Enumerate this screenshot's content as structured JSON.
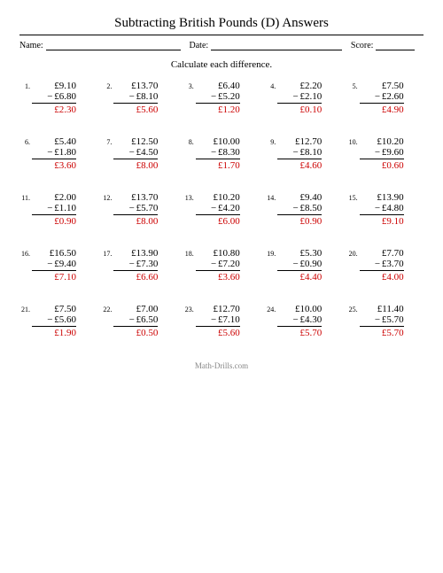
{
  "title": "Subtracting British Pounds (D) Answers",
  "meta": {
    "name_label": "Name:",
    "date_label": "Date:",
    "score_label": "Score:"
  },
  "instruction": "Calculate each difference.",
  "footer": "Math-Drills.com",
  "style": {
    "answer_color": "#cc0000",
    "text_color": "#000000",
    "footer_color": "#888888",
    "background_color": "#ffffff",
    "title_fontsize": 15,
    "body_fontsize": 11,
    "pnum_fontsize": 8
  },
  "problems": [
    {
      "n": "1.",
      "a": "£9.10",
      "b": "£6.80",
      "r": "£2.30"
    },
    {
      "n": "2.",
      "a": "£13.70",
      "b": "£8.10",
      "r": "£5.60"
    },
    {
      "n": "3.",
      "a": "£6.40",
      "b": "£5.20",
      "r": "£1.20"
    },
    {
      "n": "4.",
      "a": "£2.20",
      "b": "£2.10",
      "r": "£0.10"
    },
    {
      "n": "5.",
      "a": "£7.50",
      "b": "£2.60",
      "r": "£4.90"
    },
    {
      "n": "6.",
      "a": "£5.40",
      "b": "£1.80",
      "r": "£3.60"
    },
    {
      "n": "7.",
      "a": "£12.50",
      "b": "£4.50",
      "r": "£8.00"
    },
    {
      "n": "8.",
      "a": "£10.00",
      "b": "£8.30",
      "r": "£1.70"
    },
    {
      "n": "9.",
      "a": "£12.70",
      "b": "£8.10",
      "r": "£4.60"
    },
    {
      "n": "10.",
      "a": "£10.20",
      "b": "£9.60",
      "r": "£0.60"
    },
    {
      "n": "11.",
      "a": "£2.00",
      "b": "£1.10",
      "r": "£0.90"
    },
    {
      "n": "12.",
      "a": "£13.70",
      "b": "£5.70",
      "r": "£8.00"
    },
    {
      "n": "13.",
      "a": "£10.20",
      "b": "£4.20",
      "r": "£6.00"
    },
    {
      "n": "14.",
      "a": "£9.40",
      "b": "£8.50",
      "r": "£0.90"
    },
    {
      "n": "15.",
      "a": "£13.90",
      "b": "£4.80",
      "r": "£9.10"
    },
    {
      "n": "16.",
      "a": "£16.50",
      "b": "£9.40",
      "r": "£7.10"
    },
    {
      "n": "17.",
      "a": "£13.90",
      "b": "£7.30",
      "r": "£6.60"
    },
    {
      "n": "18.",
      "a": "£10.80",
      "b": "£7.20",
      "r": "£3.60"
    },
    {
      "n": "19.",
      "a": "£5.30",
      "b": "£0.90",
      "r": "£4.40"
    },
    {
      "n": "20.",
      "a": "£7.70",
      "b": "£3.70",
      "r": "£4.00"
    },
    {
      "n": "21.",
      "a": "£7.50",
      "b": "£5.60",
      "r": "£1.90"
    },
    {
      "n": "22.",
      "a": "£7.00",
      "b": "£6.50",
      "r": "£0.50"
    },
    {
      "n": "23.",
      "a": "£12.70",
      "b": "£7.10",
      "r": "£5.60"
    },
    {
      "n": "24.",
      "a": "£10.00",
      "b": "£4.30",
      "r": "£5.70"
    },
    {
      "n": "25.",
      "a": "£11.40",
      "b": "£5.70",
      "r": "£5.70"
    }
  ]
}
